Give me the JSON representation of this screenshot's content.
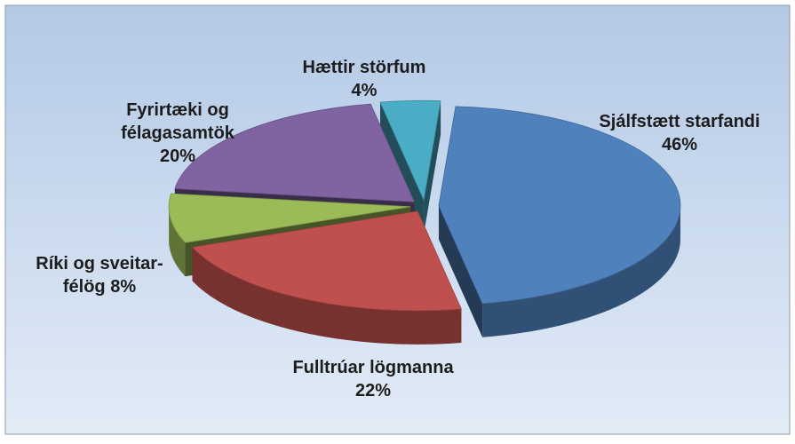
{
  "chart_data": {
    "type": "pie3d",
    "categories": [
      [
        "Sjálfstætt starfandi"
      ],
      [
        "Fulltrúar lögmanna"
      ],
      [
        "Ríki og sveitar-",
        "félög"
      ],
      [
        "Fyrirtæki og",
        "félagasamtök"
      ],
      [
        "Hættir störfum"
      ]
    ],
    "values": [
      46,
      22,
      8,
      20,
      4
    ],
    "value_labels": [
      "46%",
      "22%",
      "8%",
      "20%",
      "4%"
    ],
    "colors": [
      "#4f81bd",
      "#c0504d",
      "#9bbb59",
      "#8064a2",
      "#4bacc6"
    ]
  }
}
